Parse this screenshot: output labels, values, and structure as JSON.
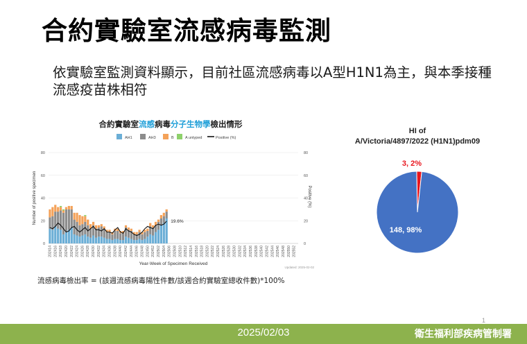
{
  "slide": {
    "title": "合約實驗室流感病毒監測",
    "bullet": "依實驗室監測資料顯示，目前社區流感病毒以A型H1N1為主，與本季接種流感疫苗株相符",
    "formula": "流感病毒檢出率 = (該週流感病毒陽性件數/該週合約實驗室總收件數)*100%",
    "footer_date": "2025/02/03",
    "footer_org": "衛生福利部疾病管制署",
    "slide_number": "1"
  },
  "chart_data": [
    {
      "type": "bar",
      "title_parts": [
        "合約實驗室",
        "流感",
        "病毒",
        "分子生物學",
        "檢出情形"
      ],
      "title_colors": [
        "#222222",
        "#1f9fd8",
        "#222222",
        "#1f9fd8",
        "#222222"
      ],
      "legend": [
        "AH1",
        "AH3",
        "B",
        "A untyped",
        "Positive (%)"
      ],
      "legend_placement": "top",
      "colors": {
        "AH1": "#6baed6",
        "AH3": "#8c8c8c",
        "B": "#f4a259",
        "A untyped": "#8ed16b",
        "Positive (%)": "#111111"
      },
      "xlabel": "Year-Week of Specimen Received",
      "ylabel": "Number of positive specimen",
      "y2label": "Positive (%)",
      "ylim": [
        0,
        80
      ],
      "y2lim": [
        0,
        80
      ],
      "yticks": [
        0,
        20,
        40,
        60,
        80
      ],
      "x_tick_labels": [
        "202414",
        "202416",
        "202418",
        "202420",
        "202422",
        "202424",
        "202426",
        "202428",
        "202430",
        "202432",
        "202434",
        "202436",
        "202438",
        "202440",
        "202442",
        "202444",
        "202446",
        "202448",
        "202450",
        "202452",
        "202502",
        "202504",
        "202506",
        "202508",
        "202510",
        "202512",
        "202514",
        "202516",
        "202518",
        "202520",
        "202522",
        "202524",
        "202526",
        "202528",
        "202530",
        "202532",
        "202534",
        "202536",
        "202538",
        "202540",
        "202542",
        "202544",
        "202546",
        "202548",
        "202550",
        "202552"
      ],
      "weeks_with_data": 44,
      "total_weeks": 92,
      "series": [
        {
          "name": "AH1",
          "values": [
            13,
            12,
            15,
            13,
            12,
            8,
            10,
            12,
            14,
            8,
            7,
            6,
            7,
            8,
            6,
            5,
            7,
            5,
            6,
            6,
            5,
            4,
            4,
            3,
            4,
            4,
            3,
            3,
            6,
            5,
            4,
            3,
            3,
            4,
            3,
            4,
            6,
            8,
            7,
            10,
            12,
            16,
            18,
            22
          ]
        },
        {
          "name": "AH3",
          "values": [
            10,
            12,
            13,
            15,
            17,
            19,
            20,
            18,
            16,
            13,
            12,
            10,
            10,
            11,
            10,
            8,
            9,
            8,
            8,
            9,
            8,
            6,
            6,
            5,
            7,
            7,
            6,
            6,
            8,
            7,
            7,
            5,
            5,
            6,
            5,
            6,
            5,
            7,
            7,
            6,
            7,
            6,
            6,
            6
          ]
        },
        {
          "name": "B",
          "values": [
            7,
            8,
            6,
            4,
            3,
            2,
            2,
            3,
            3,
            6,
            8,
            9,
            7,
            5,
            5,
            4,
            3,
            3,
            2,
            2,
            2,
            2,
            2,
            2,
            2,
            2,
            2,
            2,
            2,
            2,
            2,
            2,
            2,
            2,
            2,
            2,
            2,
            3,
            2,
            3,
            2,
            3,
            3,
            2
          ]
        },
        {
          "name": "A untyped",
          "values": [
            0,
            0,
            0,
            0,
            1,
            1,
            0,
            0,
            0,
            0,
            0,
            0,
            0,
            1,
            0,
            0,
            0,
            0,
            0,
            0,
            0,
            0,
            0,
            0,
            0,
            0,
            0,
            0,
            0,
            0,
            0,
            0,
            0,
            0,
            0,
            0,
            0,
            0,
            0,
            0,
            0,
            0,
            0,
            0
          ]
        },
        {
          "name": "Positive (%)",
          "values": [
            14,
            13,
            15,
            18,
            16,
            13,
            10,
            11,
            14,
            15,
            12,
            10,
            12,
            14,
            11,
            13,
            15,
            12,
            12,
            11,
            13,
            10,
            10,
            9,
            12,
            14,
            10,
            9,
            13,
            11,
            10,
            8,
            7,
            8,
            10,
            13,
            15,
            14,
            13,
            16,
            17,
            16,
            17,
            19.6
          ]
        }
      ],
      "annotation": "19.6%",
      "updated": "Updated: 2025-02-02"
    },
    {
      "type": "pie",
      "title": "HI of A/Victoria/4897/2022 (H1N1)pdm09",
      "title_line1": "HI of",
      "title_line2": "A/Victoria/4897/2022 (H1N1)pdm09",
      "slices": [
        {
          "label": "148, 98%",
          "value": 148,
          "color": "#4472c4"
        },
        {
          "label": "3, 2%",
          "value": 3,
          "color": "#e8161e"
        }
      ]
    }
  ]
}
